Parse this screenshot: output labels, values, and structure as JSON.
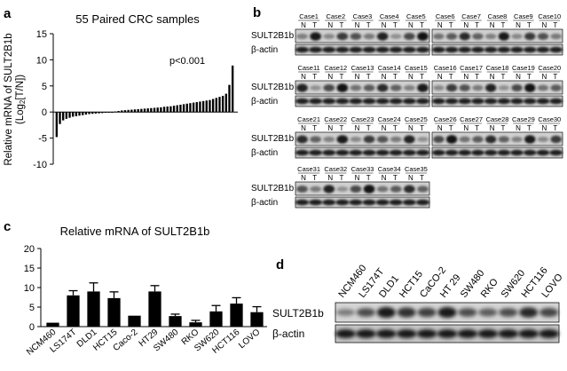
{
  "panels": {
    "a": {
      "letter": "a",
      "title": "55 Paired CRC samples",
      "ylabel_main": "Relative mRNA of SULT2B1b",
      "ylabel_sub_prefix": "(Log",
      "ylabel_sub_base": "2",
      "ylabel_sub_suffix": "[T/N])",
      "pvalue": "p<0.001",
      "chart_data": {
        "type": "bar",
        "title": "55 Paired CRC samples",
        "ylabel": "Relative mRNA of SULT2B1b (Log2[T/N])",
        "ylim": [
          -10,
          15
        ],
        "yticks": [
          -10,
          -5,
          0,
          5,
          10,
          15
        ],
        "values": [
          -4.8,
          -2.3,
          -1.6,
          -1.3,
          -1.1,
          -0.9,
          -0.8,
          -0.7,
          -0.6,
          -0.5,
          -0.4,
          -0.35,
          -0.3,
          -0.25,
          -0.2,
          -0.15,
          -0.1,
          -0.05,
          0.1,
          0.2,
          0.3,
          0.35,
          0.4,
          0.45,
          0.5,
          0.55,
          0.6,
          0.65,
          0.7,
          0.75,
          0.8,
          0.85,
          0.9,
          1.0,
          1.05,
          1.1,
          1.2,
          1.3,
          1.4,
          1.5,
          1.6,
          1.7,
          1.8,
          1.9,
          2.0,
          2.1,
          2.2,
          2.3,
          2.5,
          2.7,
          2.9,
          3.1,
          3.5,
          5.2,
          8.9
        ]
      }
    },
    "b": {
      "letter": "b",
      "row_label_target": "SULT2B1b",
      "row_label_actin": "β-actin",
      "lane_n": "N",
      "lane_t": "T",
      "cases": [
        "Case1",
        "Case2",
        "Case3",
        "Case4",
        "Case5",
        "Case6",
        "Case7",
        "Case8",
        "Case9",
        "Case10",
        "Case11",
        "Case12",
        "Case13",
        "Case14",
        "Case15",
        "Case16",
        "Case17",
        "Case18",
        "Case19",
        "Case20",
        "Case21",
        "Case22",
        "Case23",
        "Case24",
        "Case25",
        "Case26",
        "Case27",
        "Case28",
        "Case29",
        "Case30",
        "Case31",
        "Case32",
        "Case33",
        "Case34",
        "Case35"
      ]
    },
    "c": {
      "letter": "c",
      "title": "Relative mRNA of SULT2B1b",
      "chart_data": {
        "type": "bar",
        "title": "Relative mRNA of SULT2B1b",
        "categories": [
          "NCM460",
          "LS174T",
          "DLD1",
          "HCT15",
          "Caco-2",
          "HT29",
          "SW480",
          "RKO",
          "SW620",
          "HCT116",
          "LOVO"
        ],
        "values": [
          1.0,
          8.0,
          9.0,
          7.3,
          2.8,
          9.0,
          2.7,
          1.1,
          3.9,
          5.9,
          3.7
        ],
        "errors": [
          0.0,
          1.2,
          2.2,
          1.6,
          0.0,
          1.5,
          0.5,
          0.5,
          1.5,
          1.5,
          1.4
        ],
        "ylim": [
          0,
          20
        ],
        "yticks": [
          0,
          5,
          10,
          15,
          20
        ]
      }
    },
    "d": {
      "letter": "d",
      "row_label_target": "SULT2B1b",
      "row_label_actin": "β-actin",
      "cell_lines": [
        "NCM460",
        "LS174T",
        "DLD1",
        "HCT15",
        "CaCO-2",
        "HT 29",
        "SW480",
        "RKO",
        "SW620",
        "HCT116",
        "LOVO"
      ],
      "target_intensity": [
        0.25,
        0.55,
        0.9,
        0.75,
        0.65,
        0.9,
        0.55,
        0.45,
        0.55,
        0.8,
        0.6
      ]
    }
  }
}
